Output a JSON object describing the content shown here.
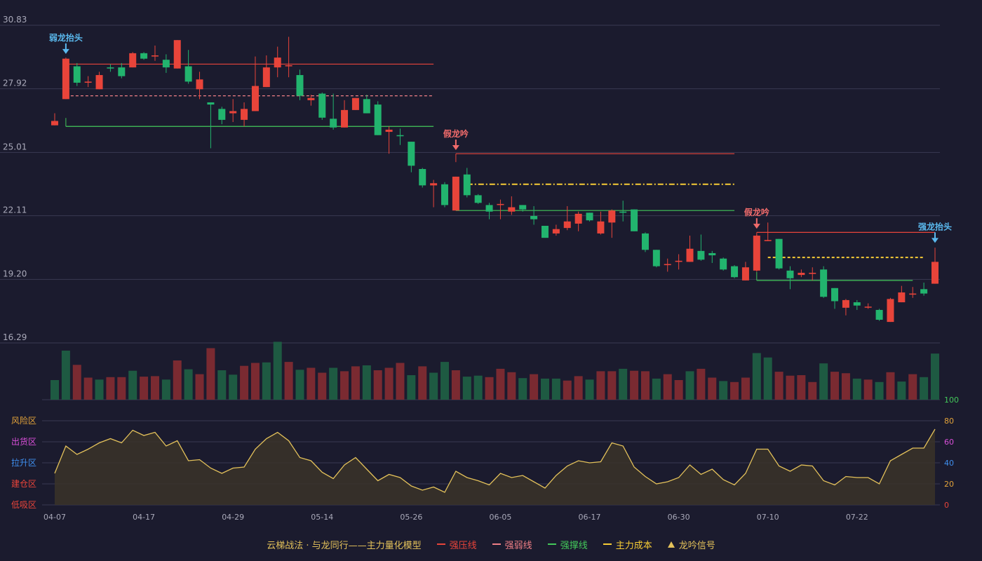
{
  "colors": {
    "background": "#1b1b2e",
    "grid": "#3a3a52",
    "axis_label": "#a9a9b9",
    "up": "#e8443a",
    "down": "#22b46e",
    "vol_up": "#7a2a31",
    "vol_down": "#1e5a42",
    "osc_line": "#e3c15a",
    "osc_fill": "#3a3328",
    "resistance": "#e8443a",
    "weak": "#f07f86",
    "support": "#43c85a",
    "cost": "#f7cc35",
    "signal_blue": "#5ab9ee",
    "signal_red": "#f06b6b"
  },
  "chart_data": {
    "type": "candlestick",
    "price_axis": {
      "ticks": [
        "30.83",
        "27.92",
        "25.01",
        "22.11",
        "19.20",
        "16.29"
      ],
      "range": [
        16.29,
        30.83
      ]
    },
    "x_ticks": [
      {
        "i": 0,
        "label": "04-07"
      },
      {
        "i": 8,
        "label": "04-17"
      },
      {
        "i": 16,
        "label": "04-29"
      },
      {
        "i": 24,
        "label": "05-14"
      },
      {
        "i": 32,
        "label": "05-26"
      },
      {
        "i": 40,
        "label": "06-05"
      },
      {
        "i": 48,
        "label": "06-17"
      },
      {
        "i": 56,
        "label": "06-30"
      },
      {
        "i": 64,
        "label": "07-10"
      },
      {
        "i": 72,
        "label": "07-22"
      }
    ],
    "candles": [
      [
        26.25,
        26.45,
        26.25,
        26.8
      ],
      [
        27.45,
        29.3,
        27.45,
        29.35
      ],
      [
        28.95,
        28.2,
        28.05,
        29.1
      ],
      [
        28.2,
        28.25,
        28.0,
        28.5
      ],
      [
        27.9,
        28.55,
        27.9,
        28.7
      ],
      [
        28.9,
        28.85,
        28.7,
        29.05
      ],
      [
        28.9,
        28.5,
        28.4,
        29.1
      ],
      [
        28.9,
        29.55,
        28.9,
        29.6
      ],
      [
        29.55,
        29.3,
        29.25,
        29.6
      ],
      [
        29.4,
        29.45,
        29.2,
        29.9
      ],
      [
        29.25,
        28.9,
        28.65,
        29.5
      ],
      [
        28.85,
        30.15,
        28.85,
        30.15
      ],
      [
        28.95,
        28.25,
        28.15,
        29.7
      ],
      [
        27.9,
        28.35,
        27.45,
        28.7
      ],
      [
        27.3,
        27.2,
        25.2,
        27.3
      ],
      [
        27.0,
        26.5,
        26.3,
        27.1
      ],
      [
        26.8,
        26.9,
        26.4,
        27.45
      ],
      [
        26.5,
        27.0,
        26.2,
        27.3
      ],
      [
        26.9,
        28.05,
        26.9,
        29.4
      ],
      [
        28.0,
        28.9,
        28.0,
        29.45
      ],
      [
        28.9,
        29.35,
        28.45,
        29.85
      ],
      [
        28.95,
        29.0,
        28.45,
        30.3
      ],
      [
        28.55,
        27.6,
        27.4,
        28.8
      ],
      [
        27.4,
        27.5,
        27.15,
        27.65
      ],
      [
        27.7,
        26.6,
        26.5,
        27.75
      ],
      [
        26.55,
        26.15,
        26.05,
        27.7
      ],
      [
        26.15,
        26.95,
        26.15,
        27.4
      ],
      [
        26.95,
        27.5,
        26.95,
        27.5
      ],
      [
        27.45,
        26.8,
        26.8,
        27.65
      ],
      [
        27.2,
        25.8,
        25.8,
        27.35
      ],
      [
        25.95,
        26.05,
        24.95,
        26.2
      ],
      [
        25.8,
        25.75,
        25.35,
        26.1
      ],
      [
        25.5,
        24.4,
        24.1,
        25.5
      ],
      [
        24.25,
        23.5,
        23.4,
        24.3
      ],
      [
        23.5,
        23.6,
        22.5,
        23.75
      ],
      [
        23.55,
        22.6,
        22.5,
        23.65
      ],
      [
        22.35,
        23.9,
        22.35,
        23.9
      ],
      [
        24.0,
        23.05,
        22.95,
        24.3
      ],
      [
        23.05,
        22.7,
        22.65,
        23.1
      ],
      [
        22.6,
        22.3,
        21.95,
        22.7
      ],
      [
        22.6,
        22.65,
        21.95,
        22.85
      ],
      [
        22.3,
        22.5,
        22.15,
        23.0
      ],
      [
        22.6,
        22.4,
        22.3,
        22.6
      ],
      [
        22.1,
        21.95,
        21.7,
        22.55
      ],
      [
        21.65,
        21.1,
        21.1,
        21.65
      ],
      [
        21.3,
        21.5,
        21.2,
        21.7
      ],
      [
        21.55,
        21.85,
        21.45,
        22.55
      ],
      [
        21.75,
        22.2,
        21.4,
        22.3
      ],
      [
        22.25,
        21.9,
        21.85,
        22.25
      ],
      [
        21.3,
        21.85,
        21.25,
        22.3
      ],
      [
        21.8,
        22.35,
        21.1,
        22.4
      ],
      [
        22.3,
        22.25,
        21.85,
        22.8
      ],
      [
        22.4,
        21.4,
        21.4,
        22.4
      ],
      [
        21.3,
        20.55,
        20.45,
        21.35
      ],
      [
        20.55,
        19.8,
        19.75,
        20.55
      ],
      [
        19.85,
        19.9,
        19.55,
        20.15
      ],
      [
        20.0,
        20.05,
        19.65,
        20.35
      ],
      [
        20.0,
        20.6,
        20.0,
        21.2
      ],
      [
        20.5,
        20.1,
        20.05,
        21.25
      ],
      [
        20.4,
        20.3,
        19.95,
        20.5
      ],
      [
        20.15,
        19.65,
        19.6,
        20.2
      ],
      [
        19.8,
        19.3,
        19.25,
        19.85
      ],
      [
        19.15,
        19.75,
        19.15,
        20.0
      ],
      [
        19.6,
        21.2,
        19.55,
        21.25
      ],
      [
        20.95,
        21.0,
        20.95,
        21.8
      ],
      [
        21.05,
        19.7,
        19.65,
        21.05
      ],
      [
        19.6,
        19.25,
        18.75,
        19.8
      ],
      [
        19.4,
        19.5,
        19.3,
        19.65
      ],
      [
        19.45,
        19.5,
        19.15,
        19.75
      ],
      [
        19.65,
        18.4,
        18.35,
        19.8
      ],
      [
        18.8,
        18.2,
        17.85,
        18.8
      ],
      [
        17.9,
        18.25,
        17.55,
        18.3
      ],
      [
        18.15,
        18.0,
        17.8,
        18.25
      ],
      [
        17.95,
        17.95,
        17.85,
        18.1
      ],
      [
        17.8,
        17.35,
        17.3,
        17.85
      ],
      [
        17.25,
        18.3,
        17.25,
        18.35
      ],
      [
        18.15,
        18.6,
        18.15,
        18.9
      ],
      [
        18.5,
        18.55,
        18.35,
        18.85
      ],
      [
        18.75,
        18.55,
        18.45,
        19.05
      ],
      [
        19.0,
        20.0,
        19.0,
        20.65
      ]
    ],
    "volume_up": [
      false,
      false,
      true,
      true,
      false,
      true,
      true,
      false,
      true,
      true,
      false,
      true,
      false,
      true,
      true,
      false,
      false,
      true,
      true,
      false,
      false,
      true,
      false,
      true,
      true,
      false,
      true,
      true,
      false,
      true,
      true,
      true,
      false,
      true,
      false,
      false,
      true,
      false,
      false,
      true,
      true,
      true,
      false,
      true,
      false,
      false,
      true,
      true,
      false,
      true,
      true,
      false,
      true,
      true,
      false,
      true,
      true,
      false,
      true,
      true,
      false,
      true,
      true,
      false,
      false,
      true,
      true,
      true,
      true,
      false,
      true,
      true,
      false,
      true,
      false,
      true,
      false,
      true,
      false,
      false
    ],
    "volumes": [
      0.4,
      1.0,
      0.71,
      0.45,
      0.41,
      0.46,
      0.46,
      0.59,
      0.47,
      0.48,
      0.41,
      0.8,
      0.62,
      0.52,
      1.05,
      0.6,
      0.51,
      0.69,
      0.75,
      0.76,
      1.18,
      0.77,
      0.61,
      0.65,
      0.55,
      0.65,
      0.58,
      0.68,
      0.7,
      0.6,
      0.65,
      0.75,
      0.5,
      0.68,
      0.55,
      0.77,
      0.6,
      0.47,
      0.49,
      0.46,
      0.63,
      0.56,
      0.44,
      0.52,
      0.43,
      0.43,
      0.39,
      0.48,
      0.41,
      0.58,
      0.58,
      0.63,
      0.59,
      0.58,
      0.43,
      0.52,
      0.4,
      0.58,
      0.63,
      0.45,
      0.38,
      0.36,
      0.45,
      0.95,
      0.86,
      0.57,
      0.49,
      0.5,
      0.36,
      0.74,
      0.57,
      0.54,
      0.43,
      0.41,
      0.36,
      0.56,
      0.37,
      0.52,
      0.46,
      0.94
    ],
    "osc_right_ticks": [
      "100",
      "80",
      "60",
      "40",
      "20",
      "0"
    ],
    "osc_zones": [
      "风险区",
      "出货区",
      "拉升区",
      "建仓区",
      "低吸区"
    ],
    "osc_values": [
      30,
      56,
      48,
      53,
      59,
      63,
      59,
      71,
      66,
      69,
      56,
      61,
      42,
      43,
      35,
      30,
      35,
      36,
      53,
      63,
      69,
      61,
      45,
      42,
      31,
      25,
      38,
      45,
      34,
      23,
      29,
      26,
      18,
      14,
      17,
      12,
      32,
      26,
      23,
      19,
      30,
      26,
      28,
      22,
      16,
      28,
      37,
      42,
      40,
      41,
      59,
      56,
      36,
      27,
      20,
      22,
      26,
      38,
      29,
      34,
      24,
      19,
      30,
      53,
      53,
      37,
      32,
      38,
      37,
      23,
      19,
      27,
      26,
      26,
      20,
      42,
      48,
      54,
      54,
      72
    ],
    "lines": [
      {
        "kind": "resistance",
        "value": 29.05,
        "from": 1,
        "to": 34,
        "style": "solid"
      },
      {
        "kind": "weak",
        "value": 27.6,
        "from": 1,
        "to": 34,
        "style": "dashed"
      },
      {
        "kind": "support",
        "value": 26.2,
        "from": 1,
        "to": 34,
        "style": "solid"
      },
      {
        "kind": "resistance",
        "value": 24.95,
        "from": 36,
        "to": 61,
        "style": "solid"
      },
      {
        "kind": "cost",
        "value": 23.55,
        "from": 37,
        "to": 61,
        "style": "dashdot"
      },
      {
        "kind": "support",
        "value": 22.35,
        "from": 36,
        "to": 61,
        "style": "solid"
      },
      {
        "kind": "resistance",
        "value": 21.35,
        "from": 63,
        "to": 79,
        "style": "solid"
      },
      {
        "kind": "cost",
        "value": 20.2,
        "from": 64,
        "to": 78,
        "style": "dashed"
      },
      {
        "kind": "support",
        "value": 19.15,
        "from": 63,
        "to": 77,
        "style": "solid"
      }
    ],
    "signals": [
      {
        "label": "弱龙抬头",
        "i": 1,
        "type": "blue",
        "arrow_down": true,
        "anchor": 29.55
      },
      {
        "label": "假龙吟",
        "i": 36,
        "type": "red",
        "arrow_down": true,
        "anchor": 25.15
      },
      {
        "label": "假龙吟",
        "i": 63,
        "type": "red",
        "arrow_down": true,
        "anchor": 21.55
      },
      {
        "label": "强龙抬头",
        "i": 79,
        "type": "blue",
        "arrow_down": true,
        "anchor": 20.9
      }
    ]
  },
  "legend": {
    "title": "云梯战法 · 与龙同行——主力量化模型",
    "items": [
      {
        "label": "强压线",
        "color": "#e8443a",
        "style": "solid"
      },
      {
        "label": "强弱线",
        "color": "#f07f86",
        "style": "dashed"
      },
      {
        "label": "强撑线",
        "color": "#43c85a",
        "style": "solid"
      },
      {
        "label": "主力成本",
        "color": "#f7cc35",
        "style": "dashed"
      },
      {
        "label": "龙吟信号",
        "color": "#e3c15a",
        "style": "triangle"
      }
    ]
  }
}
